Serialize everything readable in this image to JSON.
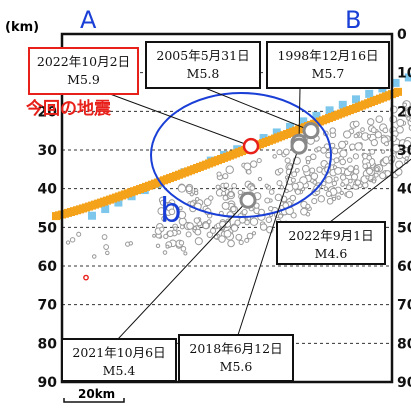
{
  "chart_data": {
    "type": "scatter",
    "title": "",
    "xlabel": "",
    "ylabel": "(km)",
    "y_unit": "km",
    "ylim": [
      0,
      90
    ],
    "y_inverted": true,
    "yticks_left": [
      "10",
      "20",
      "30",
      "40",
      "50",
      "60",
      "70",
      "80",
      "90"
    ],
    "yticks_right": [
      "0",
      "10",
      "20",
      "30",
      "40",
      "50",
      "60",
      "70",
      "80",
      "90"
    ],
    "grid": "horizontal dashed",
    "section_end_left": "A",
    "section_end_right": "B",
    "region_label": "b",
    "current_quake_label": "今回の地震",
    "scale_bar": "20km",
    "colors": {
      "section_labels": "#1a3fd6",
      "current_quake": "#e8201a",
      "plate_orange": "#f5a21b",
      "plate_blue": "#7ec7ec",
      "ellipse": "#1a3fd6",
      "gray_events": "#9a9a9a"
    },
    "annotations": [
      {
        "date": "2022年10月2日",
        "mag": "M5.9",
        "x_km": 63,
        "depth_km": 29,
        "highlight": true
      },
      {
        "date": "2005年5月31日",
        "mag": "M5.8",
        "x_km": 83,
        "depth_km": 25
      },
      {
        "date": "1998年12月16日",
        "mag": "M5.7",
        "x_km": 79,
        "depth_km": 28
      },
      {
        "date": "2022年9月1日",
        "mag": "M4.6",
        "x_km": 127,
        "depth_km": 26
      },
      {
        "date": "2021年10月6日",
        "mag": "M5.4",
        "x_km": 62,
        "depth_km": 43
      },
      {
        "date": "2018年6月12日",
        "mag": "M5.6",
        "x_km": 79,
        "depth_km": 29
      }
    ]
  }
}
